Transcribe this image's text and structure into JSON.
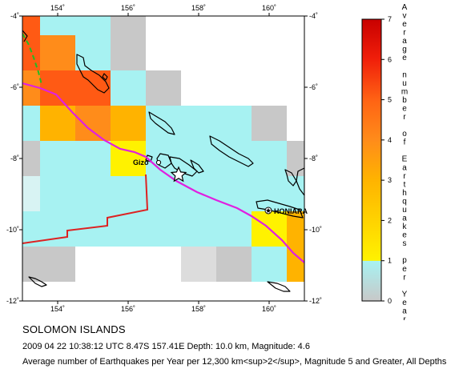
{
  "map": {
    "lon_range": [
      153,
      161
    ],
    "lat_range": [
      -12,
      -4
    ],
    "lon_ticks": [
      {
        "value": 154,
        "label": "154˚"
      },
      {
        "value": 156,
        "label": "156˚"
      },
      {
        "value": 158,
        "label": "158˚"
      },
      {
        "value": 160,
        "label": "160˚"
      }
    ],
    "lat_ticks": [
      {
        "value": -4,
        "label": "-4˚"
      },
      {
        "value": -6,
        "label": "-6˚"
      },
      {
        "value": -8,
        "label": "-8˚"
      },
      {
        "value": -10,
        "label": "-10˚"
      },
      {
        "value": -12,
        "label": "-12˚"
      }
    ],
    "colors": {
      "grey": "#c8c8c8",
      "cyan": "#a7f2f2",
      "yellow": "#fff200",
      "gold": "#ffb300",
      "orange": "#ff8c1a",
      "red_orange": "#ff5a14",
      "red": "#f01e0a",
      "plate_boundary": "#e020e0",
      "trench": "#dd2222",
      "fault": "#22bb22"
    },
    "places": [
      {
        "name": "Gizo",
        "lon": 156.85,
        "lat": -8.12
      },
      {
        "name": "HONIARA",
        "lon": 159.95,
        "lat": -9.43
      }
    ],
    "epicenter": {
      "lon": 157.41,
      "lat": -8.47
    }
  },
  "legend": {
    "title": "Average number of Earthquakes per Year",
    "min": 0,
    "max": 7,
    "tick_labels": [
      "0",
      "1",
      "2",
      "3",
      "4",
      "5",
      "6",
      "7"
    ]
  },
  "caption": {
    "region": "SOLOMON ISLANDS",
    "event": "2009 04 22 10:38:12 UTC 8.47S 157.41E Depth: 10.0 km, Magnitude: 4.6",
    "legend_text": "Average number of Earthquakes per Year per 12,300 km<sup>2</sup>, Magnitude 5 and Greater, All Depths"
  }
}
